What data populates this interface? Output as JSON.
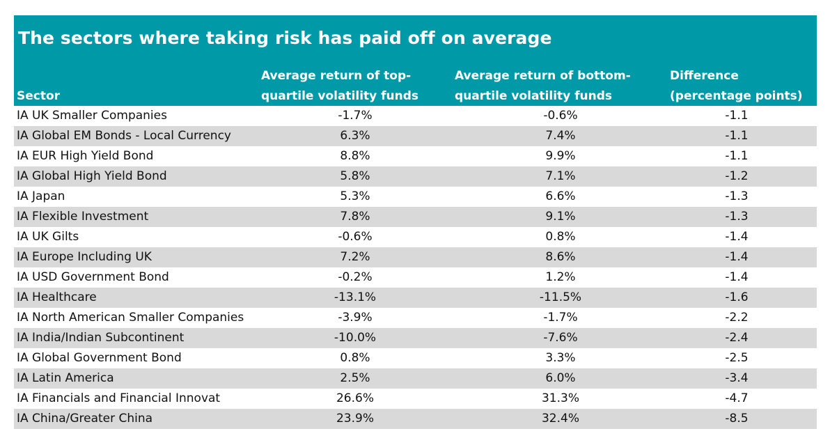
{
  "colors": {
    "header_bg": "#0099A8",
    "row_alt": "#D9D9D9",
    "header_text": "#ffffff"
  },
  "title": "The sectors where taking risk has paid off on average",
  "headers": {
    "sector": "Sector",
    "top_line1": "Average return of top-",
    "top_line2": "quartile volatility funds",
    "bottom_line1": "Average return of bottom-",
    "bottom_line2": "quartile volatility funds",
    "diff_line1": "Difference",
    "diff_line2": "(percentage points)"
  },
  "chart_data": {
    "type": "table",
    "title": "The sectors where taking risk has paid off on average",
    "columns": [
      "Sector",
      "Average return of top-quartile volatility funds",
      "Average return of bottom-quartile volatility funds",
      "Difference (percentage points)"
    ],
    "rows": [
      [
        "IA UK Smaller Companies",
        "-1.7%",
        "-0.6%",
        "-1.1"
      ],
      [
        "IA Global EM Bonds - Local Currency",
        "6.3%",
        "7.4%",
        "-1.1"
      ],
      [
        "IA EUR High Yield Bond",
        "8.8%",
        "9.9%",
        "-1.1"
      ],
      [
        "IA Global High Yield Bond",
        "5.8%",
        "7.1%",
        "-1.2"
      ],
      [
        "IA Japan",
        "5.3%",
        "6.6%",
        "-1.3"
      ],
      [
        "IA Flexible Investment",
        "7.8%",
        "9.1%",
        "-1.3"
      ],
      [
        "IA UK Gilts",
        "-0.6%",
        "0.8%",
        "-1.4"
      ],
      [
        "IA Europe Including UK",
        "7.2%",
        "8.6%",
        "-1.4"
      ],
      [
        "IA USD Government Bond",
        "-0.2%",
        "1.2%",
        "-1.4"
      ],
      [
        "IA Healthcare",
        "-13.1%",
        "-11.5%",
        "-1.6"
      ],
      [
        "IA North American Smaller Companies",
        "-3.9%",
        "-1.7%",
        "-2.2"
      ],
      [
        "IA India/Indian Subcontinent",
        "-10.0%",
        "-7.6%",
        "-2.4"
      ],
      [
        "IA Global Government Bond",
        "0.8%",
        "3.3%",
        "-2.5"
      ],
      [
        "IA Latin America",
        "2.5%",
        "6.0%",
        "-3.4"
      ],
      [
        "IA Financials and Financial Innovat",
        "26.6%",
        "31.3%",
        "-4.7"
      ],
      [
        "IA China/Greater China",
        "23.9%",
        "32.4%",
        "-8.5"
      ]
    ]
  }
}
